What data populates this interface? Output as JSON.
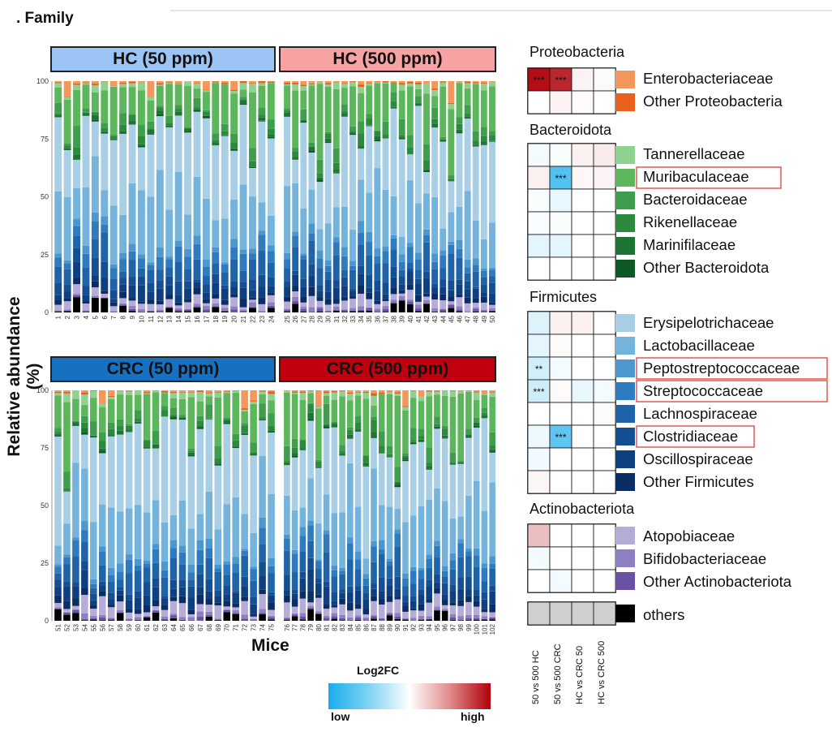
{
  "figure": {
    "title": ". Family",
    "ylabel": "Relative abundance (%)",
    "xlabel": "Mice",
    "y_ticks": [
      "0",
      "25",
      "50",
      "75",
      "100"
    ]
  },
  "chart_data": [
    {
      "type": "stacked-bar",
      "title": "HC (50 ppm)",
      "ylim": [
        0,
        100
      ],
      "categories": [
        "1",
        "2",
        "3",
        "4",
        "5",
        "6",
        "7",
        "8",
        "9",
        "10",
        "11",
        "12",
        "13",
        "14",
        "15",
        "16",
        "17",
        "18",
        "19",
        "20",
        "21",
        "22",
        "23",
        "24"
      ]
    },
    {
      "type": "stacked-bar",
      "title": "HC (500 ppm)",
      "ylim": [
        0,
        100
      ],
      "categories": [
        "25",
        "26",
        "27",
        "28",
        "29",
        "30",
        "31",
        "32",
        "33",
        "34",
        "35",
        "36",
        "37",
        "38",
        "39",
        "40",
        "41",
        "42",
        "43",
        "44",
        "45",
        "46",
        "47",
        "48",
        "49",
        "50"
      ]
    },
    {
      "type": "stacked-bar",
      "title": "CRC (50 ppm)",
      "ylim": [
        0,
        100
      ],
      "categories": [
        "51",
        "52",
        "53",
        "54",
        "55",
        "56",
        "57",
        "58",
        "59",
        "60",
        "61",
        "62",
        "63",
        "64",
        "65",
        "66",
        "67",
        "68",
        "69",
        "70",
        "71",
        "72",
        "73",
        "74",
        "75"
      ]
    },
    {
      "type": "stacked-bar",
      "title": "CRC (500 ppm)",
      "ylim": [
        0,
        100
      ],
      "categories": [
        "76",
        "77",
        "78",
        "79",
        "80",
        "81",
        "82",
        "83",
        "84",
        "85",
        "86",
        "87",
        "88",
        "89",
        "90",
        "91",
        "92",
        "93",
        "94",
        "95",
        "96",
        "97",
        "98",
        "99",
        "100",
        "101",
        "102"
      ]
    },
    {
      "type": "heatmap",
      "title": "Log2FC",
      "colorbar": {
        "low_label": "low",
        "high_label": "high",
        "low_color": "#1aacec",
        "mid_color": "#ffffff",
        "high_color": "#b0000a"
      },
      "columns": [
        "50 vs 500 HC",
        "50 vs 500 CRC",
        "HC vs CRC 50",
        "HC vs CRC 500"
      ],
      "groups": [
        {
          "phylum": "Proteobacteria",
          "rows": [
            {
              "name": "Enterobacteriaceae",
              "color": "#f4975a",
              "values": [
                0.95,
                0.85,
                0.05,
                0.02
              ],
              "stars": [
                "***",
                "***",
                "",
                ""
              ],
              "boxed": false
            },
            {
              "name": "Other Proteobacteria",
              "color": "#e8601c",
              "values": [
                0.0,
                0.05,
                0.02,
                0.0
              ],
              "stars": [
                "",
                "",
                "",
                ""
              ],
              "boxed": false
            }
          ]
        },
        {
          "phylum": "Bacteroidota",
          "rows": [
            {
              "name": "Tannerellaceae",
              "color": "#8fd18f",
              "values": [
                -0.05,
                -0.03,
                0.06,
                0.08
              ],
              "stars": [
                "",
                "",
                "",
                ""
              ],
              "boxed": false
            },
            {
              "name": "Muribaculaceae",
              "color": "#5cb65c",
              "values": [
                0.06,
                -0.75,
                0.03,
                0.05
              ],
              "stars": [
                "",
                "***",
                "",
                ""
              ],
              "boxed": true
            },
            {
              "name": "Bacteroidaceae",
              "color": "#3e9e4d",
              "values": [
                -0.03,
                -0.1,
                0.0,
                0.0
              ],
              "stars": [
                "",
                "",
                "",
                ""
              ],
              "boxed": false
            },
            {
              "name": "Rikenellaceae",
              "color": "#2b8a3e",
              "values": [
                -0.02,
                -0.03,
                0.0,
                0.0
              ],
              "stars": [
                "",
                "",
                "",
                ""
              ],
              "boxed": false
            },
            {
              "name": "Marinifilaceae",
              "color": "#1e7433",
              "values": [
                -0.12,
                -0.12,
                0.0,
                0.0
              ],
              "stars": [
                "",
                "",
                "",
                ""
              ],
              "boxed": false
            },
            {
              "name": "Other Bacteroidota",
              "color": "#0d5a28",
              "values": [
                0.0,
                0.0,
                0.0,
                0.0
              ],
              "stars": [
                "",
                "",
                "",
                ""
              ],
              "boxed": false
            }
          ]
        },
        {
          "phylum": "Firmicutes",
          "rows": [
            {
              "name": "Erysipelotrichaceae",
              "color": "#a9cfe6",
              "values": [
                -0.15,
                0.06,
                0.06,
                0.0
              ],
              "stars": [
                "",
                "",
                "",
                ""
              ],
              "boxed": false
            },
            {
              "name": "Lactobacillaceae",
              "color": "#73b3dc",
              "values": [
                -0.12,
                0.02,
                0.0,
                0.0
              ],
              "stars": [
                "",
                "",
                "",
                ""
              ],
              "boxed": false
            },
            {
              "name": "Peptostreptococcaceae",
              "color": "#4c97ce",
              "values": [
                -0.2,
                -0.05,
                0.0,
                0.0
              ],
              "stars": [
                "**",
                "",
                "",
                ""
              ],
              "boxed": true
            },
            {
              "name": "Streptococcaceae",
              "color": "#2e7cbf",
              "values": [
                -0.22,
                0.02,
                -0.1,
                -0.05
              ],
              "stars": [
                "***",
                "",
                "",
                ""
              ],
              "boxed": true
            },
            {
              "name": "Lachnospiraceae",
              "color": "#1f63a8",
              "values": [
                0.0,
                0.0,
                0.0,
                0.02
              ],
              "stars": [
                "",
                "",
                "",
                ""
              ],
              "boxed": false
            },
            {
              "name": "Clostridiaceae",
              "color": "#154f93",
              "values": [
                -0.08,
                -0.7,
                0.0,
                0.0
              ],
              "stars": [
                "",
                "***",
                "",
                ""
              ],
              "boxed": true
            },
            {
              "name": "Oscillospiraceae",
              "color": "#0e3f80",
              "values": [
                -0.06,
                0.0,
                0.0,
                0.0
              ],
              "stars": [
                "",
                "",
                "",
                ""
              ],
              "boxed": false
            },
            {
              "name": "Other Firmicutes",
              "color": "#0a2d66",
              "values": [
                0.04,
                0.0,
                0.0,
                0.0
              ],
              "stars": [
                "",
                "",
                "",
                ""
              ],
              "boxed": false
            }
          ]
        },
        {
          "phylum": "Actinobacteriota",
          "rows": [
            {
              "name": "Atopobiaceae",
              "color": "#b6acd8",
              "values": [
                0.25,
                0.0,
                0.0,
                0.0
              ],
              "stars": [
                "",
                "",
                "",
                ""
              ],
              "boxed": false
            },
            {
              "name": "Bifidobacteriaceae",
              "color": "#8e7fc3",
              "values": [
                -0.05,
                0.0,
                0.0,
                0.0
              ],
              "stars": [
                "",
                "",
                "",
                ""
              ],
              "boxed": false
            },
            {
              "name": "Other Actinobacteriota",
              "color": "#6a51a3",
              "values": [
                0.0,
                -0.05,
                0.0,
                0.0
              ],
              "stars": [
                "",
                "",
                "",
                ""
              ],
              "boxed": false
            }
          ]
        },
        {
          "phylum": "",
          "rows": [
            {
              "name": "others",
              "color": "#000000",
              "values": [
                null,
                null,
                null,
                null
              ],
              "stars": [
                "",
                "",
                "",
                ""
              ],
              "boxed": false
            }
          ]
        }
      ]
    }
  ]
}
